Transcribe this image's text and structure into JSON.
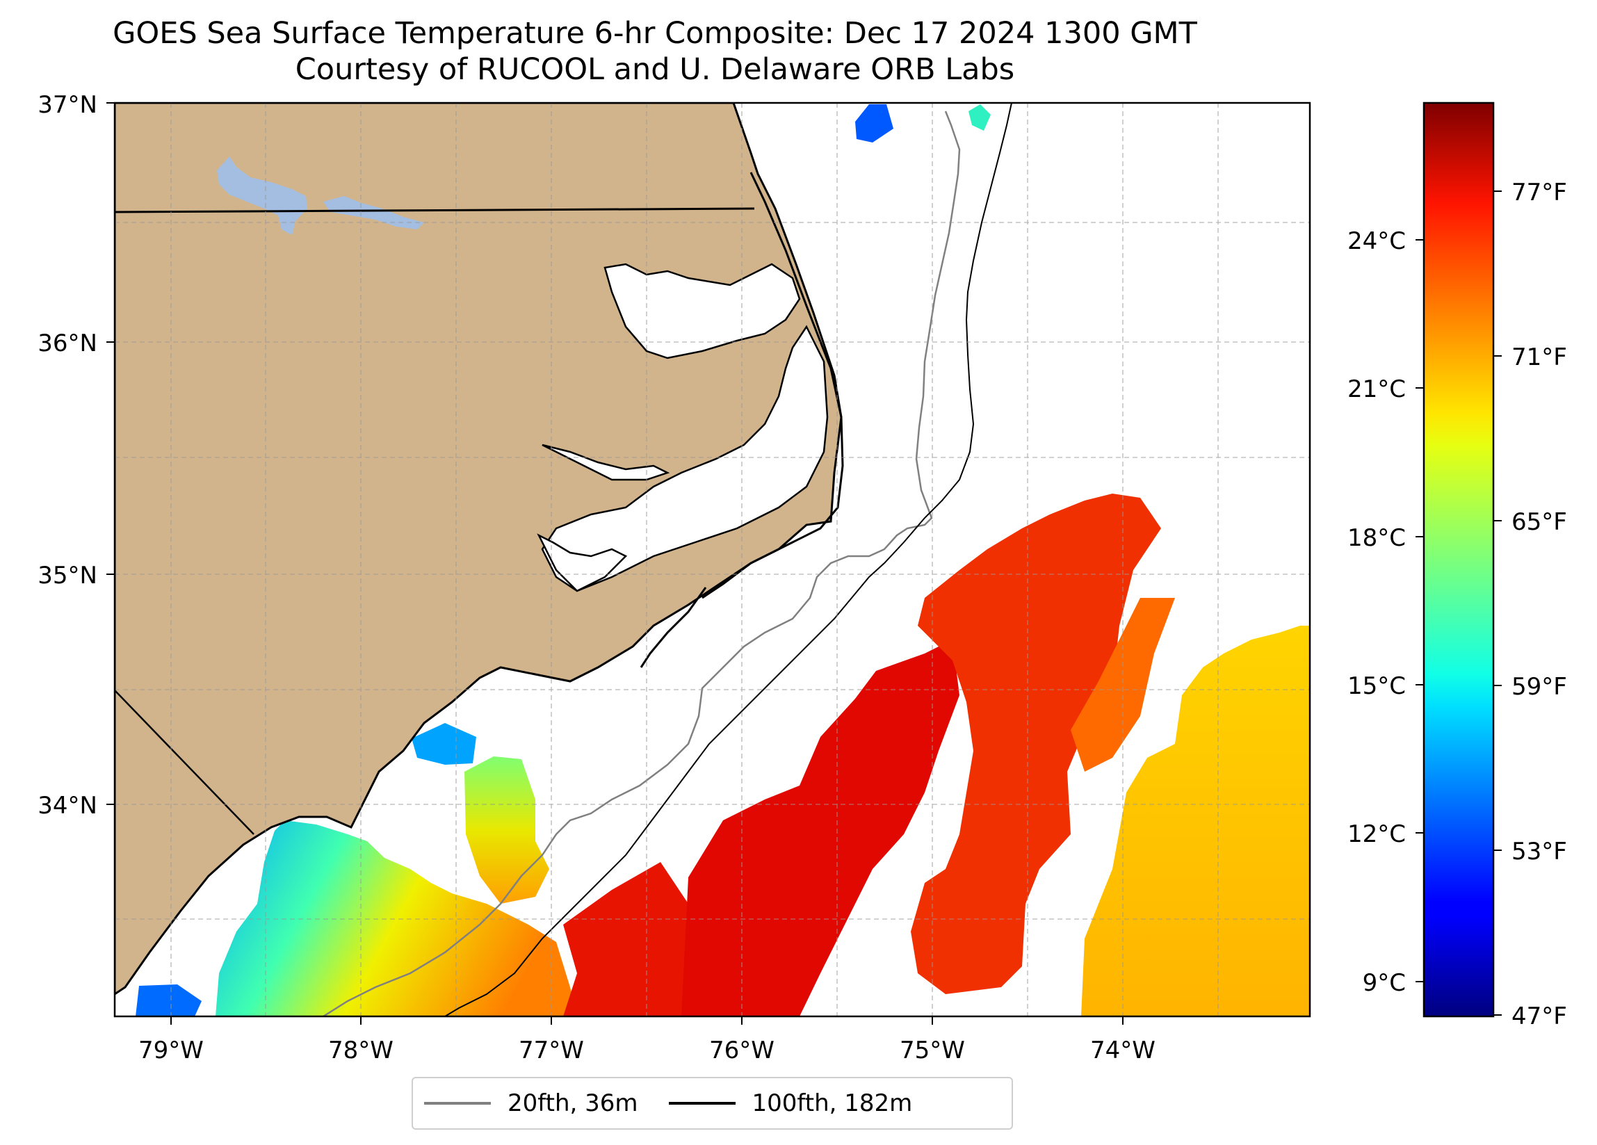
{
  "title": "GOES Sea Surface Temperature 6-hr Composite: Dec 17 2024 1300 GMT",
  "subtitle": "Courtesy of RUCOOL and U. Delaware ORB Labs",
  "map": {
    "lon_range": [
      -79.3,
      -73.2
    ],
    "lat_range": [
      33.1,
      37.0
    ],
    "gridlines": true,
    "land_color": "#d2b48c",
    "lake_color": "#a3bee0",
    "lon_ticks": [
      {
        "value": -79,
        "label": "79°W"
      },
      {
        "value": -78,
        "label": "78°W"
      },
      {
        "value": -77,
        "label": "77°W"
      },
      {
        "value": -76,
        "label": "76°W"
      },
      {
        "value": -75,
        "label": "75°W"
      },
      {
        "value": -74,
        "label": "74°W"
      }
    ],
    "lat_ticks": [
      {
        "value": 37,
        "label": "37°N"
      },
      {
        "value": 36,
        "label": "36°N"
      },
      {
        "value": 35,
        "label": "35°N"
      },
      {
        "value": 34,
        "label": "34°N"
      }
    ]
  },
  "colorbar": {
    "colormap": "jet",
    "range_c": [
      8.3,
      26.7
    ],
    "celsius_ticks": [
      {
        "value": 24,
        "label": "24°C"
      },
      {
        "value": 21,
        "label": "21°C"
      },
      {
        "value": 18,
        "label": "18°C"
      },
      {
        "value": 15,
        "label": "15°C"
      },
      {
        "value": 12,
        "label": "12°C"
      },
      {
        "value": 9,
        "label": "9°C"
      }
    ],
    "fahrenheit_ticks": [
      {
        "value": 77,
        "label": "77°F"
      },
      {
        "value": 71,
        "label": "71°F"
      },
      {
        "value": 65,
        "label": "65°F"
      },
      {
        "value": 59,
        "label": "59°F"
      },
      {
        "value": 53,
        "label": "53°F"
      },
      {
        "value": 47,
        "label": "47°F"
      }
    ]
  },
  "legend": {
    "placement": "bottom-center",
    "items": [
      {
        "label": "20fth, 36m",
        "color": "#808080"
      },
      {
        "label": "100fth, 182m",
        "color": "#000000"
      }
    ]
  }
}
